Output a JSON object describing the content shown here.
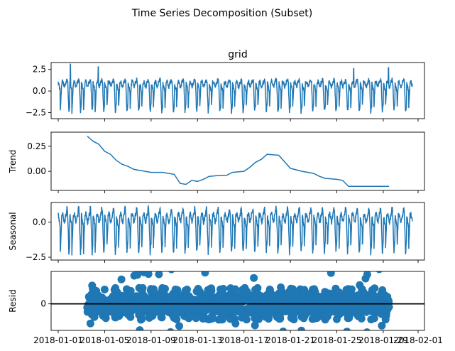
{
  "chart_data": {
    "type": "line",
    "title": "Time Series Decomposition (Subset)",
    "x_range": [
      "2018-01-01",
      "2018-02-01"
    ],
    "x_tick_labels": [
      "2018-01-01",
      "2018-01-05",
      "2018-01-09",
      "2018-01-13",
      "2018-01-17",
      "2018-01-21",
      "2018-01-25",
      "2018-01-29",
      "2018-02-01"
    ],
    "x_tick_days": [
      0,
      4,
      8,
      12,
      16,
      20,
      24,
      28,
      31
    ],
    "series_color": "#1f77b4",
    "panels": [
      {
        "name": "grid",
        "title": "grid",
        "ylabel": "",
        "kind": "line",
        "x_range_days": [
          0,
          30.5
        ],
        "ylim": [
          -3.2,
          3.3
        ],
        "yticks": [
          -2.5,
          0.0,
          2.5
        ],
        "ytick_labels": [
          "−2.5",
          "0.0",
          "2.5"
        ],
        "daily_pattern": {
          "day": 1.0,
          "evening_peak": 1.3,
          "night_trough": -2.4
        },
        "notable_peaks": [
          [
            1.05,
            3.1
          ],
          [
            3.45,
            2.8
          ],
          [
            25.45,
            2.6
          ],
          [
            28.45,
            2.7
          ]
        ]
      },
      {
        "name": "trend",
        "title": "",
        "ylabel": "Trend",
        "kind": "line",
        "ylim": [
          -0.19,
          0.39
        ],
        "yticks": [
          -0.0,
          0.25
        ],
        "ytick_labels": [
          "0.00",
          "0.25"
        ],
        "x_days": [
          2.5,
          3.0,
          3.5,
          4.0,
          4.5,
          5.0,
          5.5,
          6.0,
          6.5,
          7.0,
          7.5,
          8.0,
          9.0,
          10.0,
          10.5,
          11.0,
          11.5,
          12.0,
          12.5,
          13.0,
          14.0,
          14.5,
          15.0,
          16.0,
          16.5,
          17.0,
          17.5,
          18.0,
          19.0,
          20.0,
          21.0,
          22.0,
          22.5,
          23.0,
          24.0,
          24.5,
          25.0,
          25.5,
          26.0,
          27.0,
          28.0,
          28.5
        ],
        "y": [
          0.35,
          0.3,
          0.27,
          0.2,
          0.17,
          0.11,
          0.07,
          0.05,
          0.02,
          0.01,
          0.0,
          -0.01,
          -0.01,
          -0.03,
          -0.12,
          -0.13,
          -0.09,
          -0.1,
          -0.08,
          -0.05,
          -0.04,
          -0.04,
          -0.01,
          0.0,
          0.04,
          0.09,
          0.12,
          0.17,
          0.16,
          0.03,
          0.0,
          -0.02,
          -0.05,
          -0.07,
          -0.08,
          -0.09,
          -0.15,
          -0.15,
          -0.15,
          -0.15,
          -0.15,
          -0.15
        ]
      },
      {
        "name": "seasonal",
        "title": "",
        "ylabel": "Seasonal",
        "kind": "line",
        "x_range_days": [
          0,
          30.5
        ],
        "ylim": [
          -2.7,
          1.4
        ],
        "yticks": [
          -2.5,
          0.0
        ],
        "ytick_labels": [
          "−2.5",
          "0.0"
        ],
        "daily_pattern": {
          "day": 0.5,
          "evening_peak": 1.0,
          "night_trough": -2.2
        }
      },
      {
        "name": "resid",
        "title": "",
        "ylabel": "Resid",
        "kind": "scatter",
        "x_range_days": [
          2.5,
          28.5
        ],
        "ylim": [
          -1.8,
          2.2
        ],
        "yticks": [
          0
        ],
        "ytick_labels": [
          "0"
        ],
        "zero_line": true,
        "spread": 0.6
      }
    ]
  }
}
